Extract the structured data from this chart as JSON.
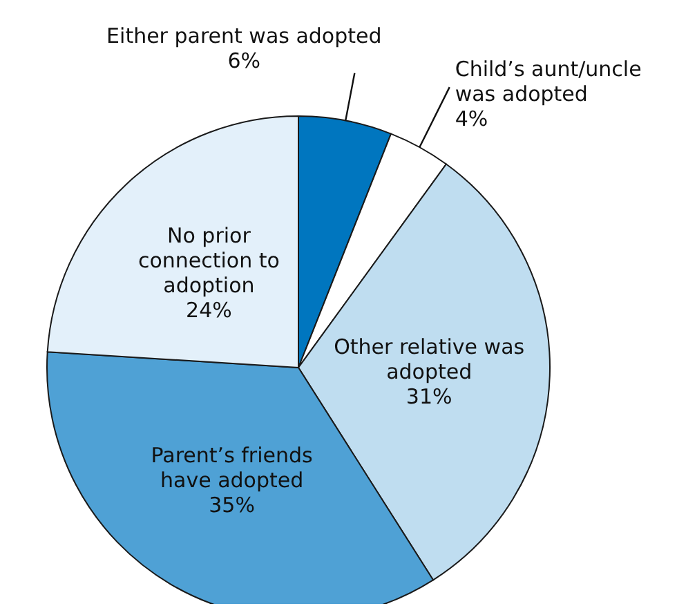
{
  "chart_data": {
    "type": "pie",
    "categories": [
      "Either parent was adopted",
      "Child’s aunt/uncle was adopted",
      "Other relative was adopted",
      "Parent’s friends have adopted",
      "No prior connection to adoption"
    ],
    "values": [
      6,
      4,
      31,
      35,
      24
    ],
    "value_labels": [
      "6%",
      "4%",
      "31%",
      "35%",
      "24%"
    ],
    "colors": [
      "#0076bf",
      "#ffffff",
      "#bfddf0",
      "#4fa1d5",
      "#e3f0fa"
    ]
  }
}
